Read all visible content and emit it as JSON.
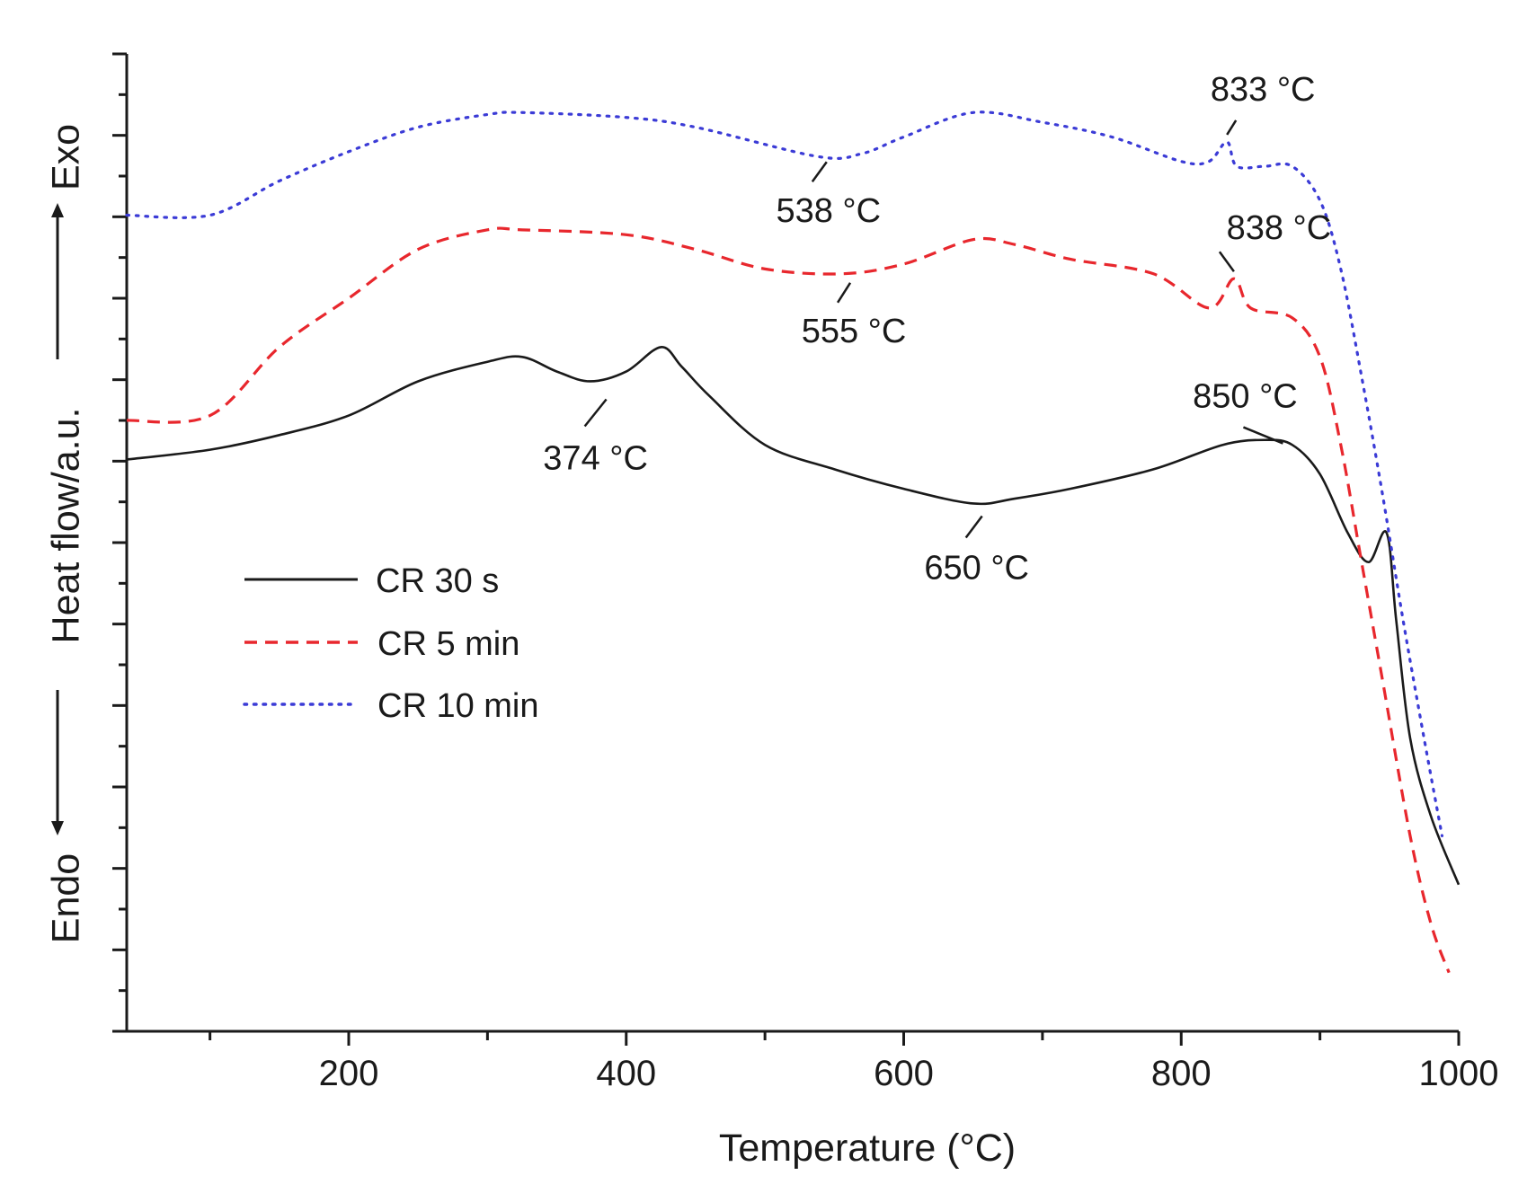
{
  "chart_data": {
    "type": "line",
    "title": "",
    "xlabel": "Temperature (°C)",
    "ylabel": "Heat flow/a.u.",
    "ylabel_top": "Exo",
    "ylabel_bottom": "Endo",
    "xlim": [
      40,
      1000
    ],
    "ylim": [
      0,
      100
    ],
    "xticks": [
      200,
      400,
      600,
      800,
      1000
    ],
    "xtick_labels": [
      "200",
      "400",
      "600",
      "800",
      "1000"
    ],
    "grid": false,
    "legend_position": "left-middle",
    "series": [
      {
        "name": "CR 30 s",
        "color": "#1a1a1a",
        "style": "solid",
        "x": [
          40,
          100,
          150,
          200,
          250,
          300,
          325,
          350,
          374,
          400,
          425,
          440,
          460,
          500,
          550,
          600,
          650,
          680,
          720,
          780,
          830,
          860,
          880,
          900,
          920,
          935,
          948,
          955,
          965,
          980,
          1000
        ],
        "y": [
          58.5,
          59.5,
          61,
          63,
          66.5,
          68.5,
          69,
          67.5,
          66.5,
          67.5,
          70,
          68,
          65,
          60,
          57.5,
          55.5,
          54,
          54.5,
          55.5,
          57.5,
          60,
          60.5,
          60,
          57,
          51,
          48,
          51,
          42,
          30,
          22,
          15
        ]
      },
      {
        "name": "CR 5 min",
        "color": "#e8272d",
        "style": "dashed",
        "x": [
          40,
          100,
          150,
          200,
          250,
          300,
          325,
          400,
          450,
          500,
          555,
          600,
          650,
          680,
          720,
          780,
          820,
          838,
          850,
          880,
          900,
          915,
          930,
          945,
          965,
          980,
          993
        ],
        "y": [
          62.5,
          63,
          70,
          75,
          80,
          82,
          82,
          81.5,
          80,
          78,
          77.5,
          78.5,
          81,
          80.5,
          79,
          77.5,
          74,
          77,
          74,
          73,
          69,
          60,
          48,
          36,
          20,
          11,
          6
        ]
      },
      {
        "name": "CR 10 min",
        "color": "#3b3bd6",
        "style": "dotted",
        "x": [
          40,
          100,
          150,
          200,
          250,
          300,
          325,
          400,
          450,
          538,
          570,
          600,
          650,
          700,
          750,
          800,
          820,
          833,
          840,
          860,
          880,
          900,
          915,
          930,
          945,
          960,
          975,
          988
        ],
        "y": [
          83.5,
          83.5,
          87,
          90,
          92.5,
          93.8,
          94,
          93.5,
          92.5,
          89.5,
          89.8,
          91.5,
          94,
          93,
          91.5,
          89,
          89,
          91,
          88.5,
          88.5,
          88.5,
          85,
          78,
          67,
          55,
          42,
          30,
          20
        ]
      }
    ],
    "annotations": [
      {
        "label": "374 °C",
        "series": "CR 30 s",
        "x": 374
      },
      {
        "label": "650 °C",
        "series": "CR 30 s",
        "x": 650
      },
      {
        "label": "850 °C",
        "series": "CR 30 s",
        "x": 850
      },
      {
        "label": "555 °C",
        "series": "CR 5 min",
        "x": 555
      },
      {
        "label": "838 °C",
        "series": "CR 5 min",
        "x": 838
      },
      {
        "label": "538 °C",
        "series": "CR 10 min",
        "x": 538
      },
      {
        "label": "833 °C",
        "series": "CR 10 min",
        "x": 833
      }
    ]
  }
}
